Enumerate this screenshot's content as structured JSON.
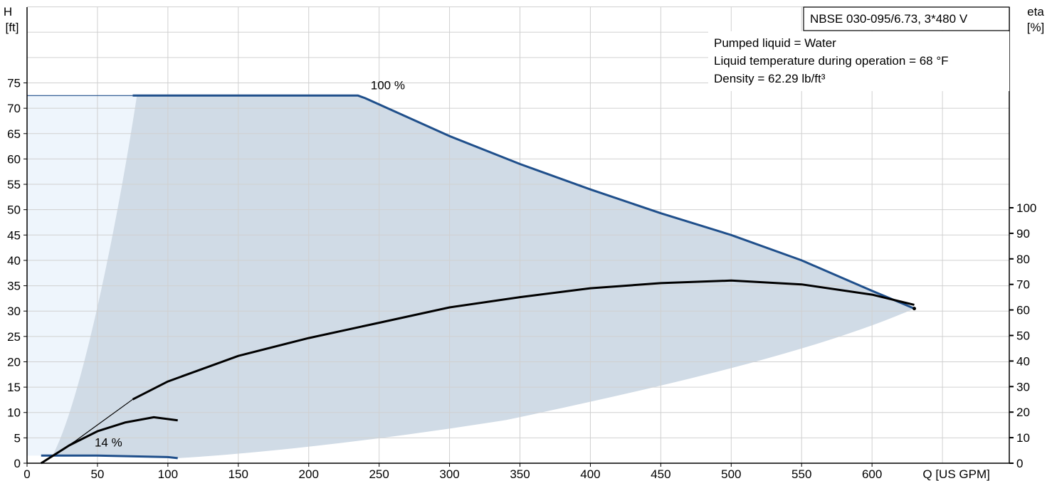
{
  "chart_data": {
    "type": "line",
    "title": "NBSE 030-095/6.73, 3*480 V",
    "annotations": [
      "Pumped liquid = Water",
      "Liquid temperature during operation = 68 °F",
      "Density = 62.29 lb/ft³"
    ],
    "ylabel": [
      "H",
      "[ft]"
    ],
    "y2label": [
      "eta",
      "[%]"
    ],
    "xlabel": "Q [US GPM]",
    "xlim": [
      0,
      690
    ],
    "ylim": [
      0,
      90
    ],
    "y2lim": [
      0,
      100
    ],
    "x_ticks": [
      "0",
      "50",
      "100",
      "150",
      "200",
      "250",
      "300",
      "350",
      "400",
      "450",
      "500",
      "550",
      "600"
    ],
    "y_ticks": [
      "0",
      "5",
      "10",
      "15",
      "20",
      "25",
      "30",
      "35",
      "40",
      "45",
      "50",
      "55",
      "60",
      "65",
      "70",
      "75"
    ],
    "y2_ticks": [
      "0",
      "10",
      "20",
      "30",
      "40",
      "50",
      "60",
      "70",
      "80",
      "90",
      "100"
    ],
    "grid": true,
    "colors": {
      "curve": "#1f4f8b",
      "eta": "#000000",
      "range": "#d0dbe6",
      "min_range": "#eef5fc",
      "grid": "#d0d0d0"
    },
    "series": [
      {
        "name": "100 %",
        "axis": "H",
        "points": [
          [
            0,
            72.5
          ],
          [
            235,
            72.5
          ],
          [
            240,
            72
          ],
          [
            300,
            64.5
          ],
          [
            350,
            59
          ],
          [
            400,
            54
          ],
          [
            450,
            49.3
          ],
          [
            500,
            45
          ],
          [
            550,
            40
          ],
          [
            600,
            34
          ],
          [
            630,
            30.5
          ]
        ]
      },
      {
        "name": "14 %",
        "axis": "H",
        "points": [
          [
            10,
            1.5
          ],
          [
            50,
            1.5
          ],
          [
            100,
            1.2
          ],
          [
            107,
            1.0
          ]
        ]
      },
      {
        "axis": "eta",
        "points": [
          [
            10,
            0
          ],
          [
            35,
            9
          ],
          [
            75,
            25
          ],
          [
            100,
            32
          ],
          [
            150,
            42
          ],
          [
            200,
            49
          ],
          [
            250,
            55
          ],
          [
            300,
            61
          ],
          [
            350,
            65
          ],
          [
            400,
            68.5
          ],
          [
            450,
            70.5
          ],
          [
            500,
            71.5
          ],
          [
            550,
            70
          ],
          [
            600,
            66
          ],
          [
            630,
            62
          ]
        ]
      },
      {
        "axis": "eta",
        "points": [
          [
            10,
            0
          ],
          [
            30,
            7
          ],
          [
            50,
            12.5
          ],
          [
            70,
            16
          ],
          [
            90,
            18
          ],
          [
            107,
            16.8
          ]
        ]
      }
    ]
  }
}
